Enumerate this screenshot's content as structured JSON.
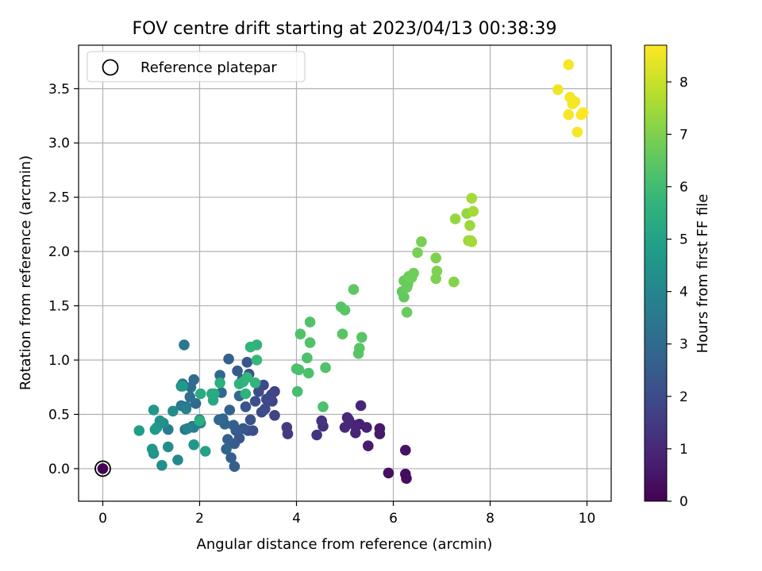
{
  "chart_data": {
    "type": "scatter",
    "title": "FOV centre drift starting at 2023/04/13 00:38:39",
    "xlabel": "Angular distance from reference (arcmin)",
    "ylabel": "Rotation from reference (arcmin)",
    "xlim": [
      -0.5,
      10.5
    ],
    "ylim": [
      -0.3,
      3.9
    ],
    "xticks": [
      "0",
      "2",
      "4",
      "6",
      "8",
      "10"
    ],
    "yticks": [
      "0.0",
      "0.5",
      "1.0",
      "1.5",
      "2.0",
      "2.5",
      "3.0",
      "3.5"
    ],
    "grid": true,
    "legend": {
      "placement": "top-left",
      "entries": [
        "Reference platepar"
      ]
    },
    "colorbar": {
      "label": "Hours from first FF file",
      "colormap": "viridis",
      "range": [
        0,
        8.7
      ],
      "ticks": [
        "0",
        "1",
        "2",
        "3",
        "4",
        "5",
        "6",
        "7",
        "8"
      ]
    },
    "reference_point": {
      "x": 0,
      "y": 0
    },
    "points": [
      [
        6.25,
        0.17,
        0.4
      ],
      [
        6.25,
        -0.05,
        0.3
      ],
      [
        6.27,
        -0.09,
        0.3
      ],
      [
        5.9,
        -0.04,
        0.4
      ],
      [
        5.72,
        0.37,
        0.6
      ],
      [
        5.72,
        0.32,
        0.6
      ],
      [
        5.48,
        0.21,
        0.7
      ],
      [
        5.45,
        0.38,
        0.8
      ],
      [
        5.33,
        0.58,
        0.9
      ],
      [
        5.3,
        0.41,
        0.8
      ],
      [
        5.22,
        0.33,
        0.9
      ],
      [
        5.2,
        0.4,
        0.9
      ],
      [
        5.08,
        0.45,
        1.0
      ],
      [
        5.0,
        0.38,
        1.0
      ],
      [
        5.05,
        0.47,
        1.0
      ],
      [
        4.55,
        0.39,
        1.2
      ],
      [
        4.52,
        0.44,
        1.3
      ],
      [
        4.42,
        0.31,
        1.3
      ],
      [
        3.82,
        0.32,
        1.5
      ],
      [
        3.8,
        0.38,
        1.5
      ],
      [
        3.55,
        0.49,
        1.7
      ],
      [
        3.55,
        0.71,
        1.7
      ],
      [
        3.5,
        0.62,
        1.8
      ],
      [
        3.48,
        0.68,
        1.8
      ],
      [
        3.38,
        0.64,
        1.9
      ],
      [
        3.35,
        0.55,
        1.9
      ],
      [
        3.32,
        0.77,
        1.9
      ],
      [
        3.28,
        0.52,
        2.0
      ],
      [
        3.22,
        0.71,
        2.0
      ],
      [
        3.15,
        0.62,
        2.1
      ],
      [
        3.1,
        0.35,
        2.1
      ],
      [
        3.05,
        0.45,
        2.2
      ],
      [
        3.02,
        0.87,
        2.2
      ],
      [
        3.0,
        0.35,
        2.2
      ],
      [
        2.98,
        0.98,
        2.3
      ],
      [
        2.95,
        0.57,
        2.3
      ],
      [
        2.9,
        0.37,
        2.4
      ],
      [
        2.88,
        0.82,
        2.4
      ],
      [
        2.82,
        0.28,
        2.4
      ],
      [
        2.78,
        0.9,
        2.5
      ],
      [
        2.75,
        0.35,
        2.5
      ],
      [
        2.72,
        0.23,
        2.5
      ],
      [
        2.72,
        0.02,
        2.6
      ],
      [
        2.7,
        0.4,
        2.6
      ],
      [
        2.65,
        0.1,
        2.6
      ],
      [
        2.62,
        0.54,
        2.7
      ],
      [
        2.6,
        1.01,
        2.7
      ],
      [
        2.58,
        0.27,
        2.7
      ],
      [
        2.55,
        0.18,
        2.8
      ],
      [
        2.52,
        0.41,
        2.8
      ],
      [
        2.48,
        0.46,
        2.8
      ],
      [
        2.45,
        0.7,
        2.9
      ],
      [
        2.42,
        0.86,
        2.9
      ],
      [
        2.4,
        0.45,
        2.9
      ],
      [
        2.82,
        0.67,
        3.0
      ],
      [
        1.92,
        0.6,
        3.0
      ],
      [
        1.88,
        0.82,
        3.0
      ],
      [
        1.85,
        0.39,
        3.1
      ],
      [
        1.82,
        0.75,
        3.1
      ],
      [
        1.8,
        0.66,
        3.2
      ],
      [
        1.72,
        0.57,
        3.2
      ],
      [
        1.7,
        0.36,
        3.3
      ],
      [
        1.68,
        1.14,
        3.4
      ],
      [
        1.65,
        0.78,
        3.4
      ],
      [
        1.62,
        0.58,
        3.5
      ],
      [
        1.35,
        0.36,
        3.6
      ],
      [
        2.0,
        0.45,
        3.6
      ],
      [
        2.02,
        0.42,
        3.7
      ],
      [
        1.88,
        0.38,
        3.8
      ],
      [
        1.72,
        0.55,
        3.8
      ],
      [
        1.75,
        0.37,
        3.9
      ],
      [
        1.62,
        0.76,
        4.0
      ],
      [
        1.55,
        0.08,
        4.1
      ],
      [
        1.45,
        0.53,
        4.2
      ],
      [
        1.35,
        0.2,
        4.2
      ],
      [
        1.25,
        0.42,
        4.3
      ],
      [
        1.22,
        0.03,
        4.3
      ],
      [
        1.18,
        0.44,
        4.4
      ],
      [
        1.12,
        0.38,
        4.5
      ],
      [
        1.05,
        0.14,
        4.5
      ],
      [
        1.05,
        0.54,
        4.6
      ],
      [
        1.02,
        0.18,
        4.6
      ],
      [
        1.08,
        0.36,
        4.7
      ],
      [
        0.75,
        0.35,
        4.8
      ],
      [
        1.88,
        0.22,
        4.6
      ],
      [
        1.65,
        0.76,
        4.7
      ],
      [
        2.12,
        0.16,
        5.0
      ],
      [
        2.28,
        0.63,
        5.2
      ],
      [
        2.3,
        0.69,
        5.2
      ],
      [
        2.25,
        0.69,
        5.3
      ],
      [
        2.02,
        0.69,
        5.3
      ],
      [
        2.0,
        0.44,
        5.4
      ],
      [
        2.42,
        0.79,
        5.5
      ],
      [
        2.82,
        0.78,
        5.6
      ],
      [
        2.9,
        0.8,
        5.6
      ],
      [
        2.95,
        0.69,
        5.6
      ],
      [
        2.98,
        0.84,
        5.7
      ],
      [
        3.15,
        0.79,
        5.7
      ],
      [
        3.18,
        1.14,
        5.6
      ],
      [
        3.05,
        1.12,
        5.7
      ],
      [
        3.18,
        1.0,
        5.8
      ],
      [
        4.02,
        0.71,
        6.1
      ],
      [
        4.0,
        0.92,
        6.2
      ],
      [
        4.05,
        0.91,
        6.2
      ],
      [
        4.25,
        0.88,
        6.2
      ],
      [
        4.22,
        1.02,
        6.2
      ],
      [
        4.28,
        1.16,
        6.3
      ],
      [
        4.55,
        0.57,
        6.2
      ],
      [
        4.6,
        0.93,
        6.3
      ],
      [
        4.08,
        1.24,
        6.3
      ],
      [
        4.28,
        1.35,
        6.3
      ],
      [
        4.95,
        1.24,
        6.4
      ],
      [
        5.28,
        1.06,
        6.4
      ],
      [
        5.3,
        1.11,
        6.4
      ],
      [
        5.35,
        1.21,
        6.4
      ],
      [
        4.92,
        1.49,
        6.4
      ],
      [
        5.0,
        1.46,
        6.4
      ],
      [
        5.18,
        1.65,
        6.5
      ],
      [
        6.22,
        1.58,
        6.6
      ],
      [
        6.18,
        1.63,
        6.6
      ],
      [
        6.28,
        1.44,
        6.7
      ],
      [
        6.28,
        1.67,
        6.7
      ],
      [
        6.22,
        1.73,
        6.7
      ],
      [
        6.3,
        1.7,
        6.7
      ],
      [
        6.32,
        1.77,
        6.8
      ],
      [
        6.38,
        1.76,
        6.8
      ],
      [
        6.42,
        1.8,
        6.8
      ],
      [
        6.5,
        1.99,
        6.9
      ],
      [
        6.58,
        2.09,
        6.9
      ],
      [
        6.88,
        1.75,
        7.0
      ],
      [
        6.9,
        1.82,
        7.0
      ],
      [
        6.88,
        1.94,
        7.0
      ],
      [
        7.25,
        1.72,
        7.1
      ],
      [
        7.28,
        2.3,
        7.3
      ],
      [
        7.52,
        2.35,
        7.3
      ],
      [
        7.58,
        2.24,
        7.4
      ],
      [
        7.55,
        2.1,
        7.4
      ],
      [
        7.6,
        2.1,
        7.4
      ],
      [
        7.62,
        2.49,
        7.5
      ],
      [
        7.65,
        2.37,
        7.5
      ],
      [
        7.62,
        2.09,
        7.5
      ],
      [
        9.4,
        3.49,
        8.5
      ],
      [
        9.62,
        3.72,
        8.6
      ],
      [
        9.65,
        3.42,
        8.6
      ],
      [
        9.7,
        3.36,
        8.6
      ],
      [
        9.75,
        3.38,
        8.6
      ],
      [
        9.62,
        3.26,
        8.6
      ],
      [
        9.8,
        3.1,
        8.6
      ],
      [
        9.88,
        3.26,
        8.7
      ],
      [
        9.92,
        3.28,
        8.7
      ]
    ]
  }
}
